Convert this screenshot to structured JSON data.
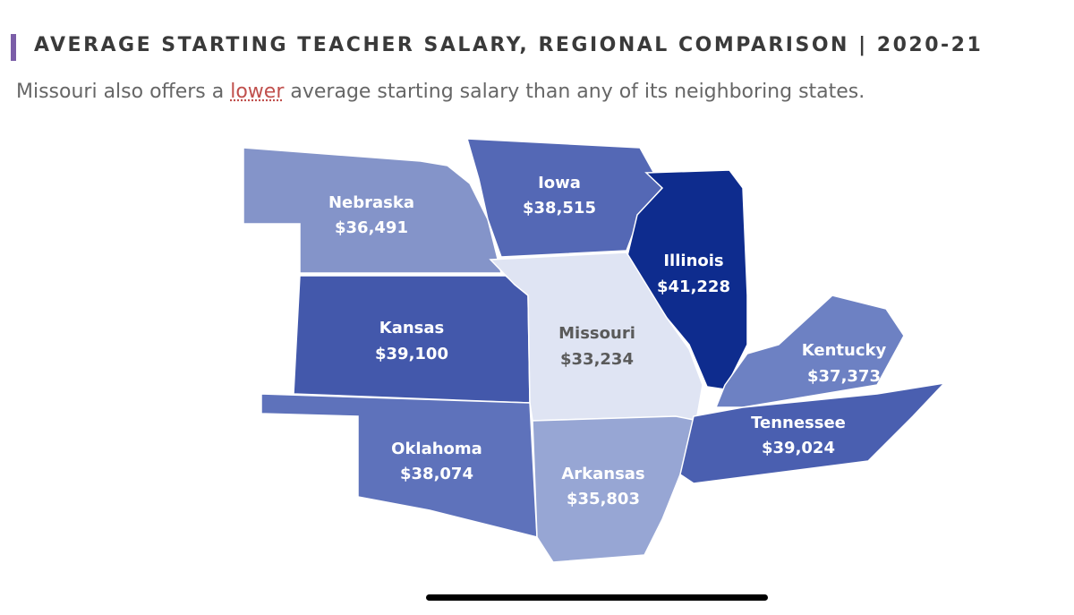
{
  "header": {
    "title": "AVERAGE STARTING TEACHER SALARY, REGIONAL COMPARISON | 2020-21",
    "subtitle": {
      "before": "Missouri also offers a",
      "highlight": "lower",
      "after": "average starting salary than any of its neighboring states."
    }
  },
  "states": [
    {
      "name": "Nebraska",
      "salary": "$36,491",
      "color": "#8494c9"
    },
    {
      "name": "Iowa",
      "salary": "$38,515",
      "color": "#5468b5"
    },
    {
      "name": "Illinois",
      "salary": "$41,228",
      "color": "#0e2c8e"
    },
    {
      "name": "Kansas",
      "salary": "$39,100",
      "color": "#4358ab"
    },
    {
      "name": "Missouri",
      "salary": "$33,234",
      "color": "#dfe4f3"
    },
    {
      "name": "Kentucky",
      "salary": "$37,373",
      "color": "#6d81c3"
    },
    {
      "name": "Oklahoma",
      "salary": "$38,074",
      "color": "#5e72bb"
    },
    {
      "name": "Arkansas",
      "salary": "$35,803",
      "color": "#97a6d4"
    },
    {
      "name": "Tennessee",
      "salary": "$39,024",
      "color": "#4a5fb0"
    }
  ]
}
